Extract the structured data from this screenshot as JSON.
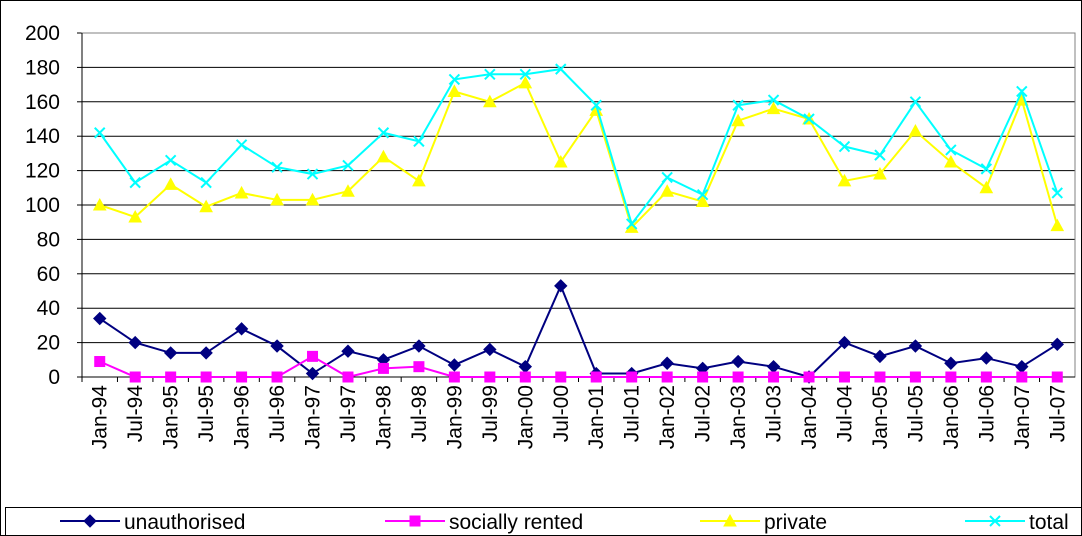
{
  "chart_data": {
    "type": "line",
    "categories": [
      "Jan-94",
      "Jul-94",
      "Jan-95",
      "Jul-95",
      "Jan-96",
      "Jul-96",
      "Jan-97",
      "Jul-97",
      "Jan-98",
      "Jul-98",
      "Jan-99",
      "Jul-99",
      "Jan-00",
      "Jul-00",
      "Jan-01",
      "Jul-01",
      "Jan-02",
      "Jul-02",
      "Jan-03",
      "Jul-03",
      "Jan-04",
      "Jul-04",
      "Jan-05",
      "Jul-05",
      "Jan-06",
      "Jul-06",
      "Jan-07",
      "Jul-07"
    ],
    "series": [
      {
        "name": "unauthorised",
        "color": "#000080",
        "marker": "diamond",
        "values": [
          34,
          20,
          14,
          14,
          28,
          18,
          2,
          15,
          10,
          18,
          7,
          16,
          6,
          53,
          2,
          2,
          8,
          5,
          9,
          6,
          0,
          20,
          12,
          18,
          8,
          11,
          6,
          19
        ]
      },
      {
        "name": "socially rented",
        "color": "#ff00ff",
        "marker": "square",
        "values": [
          9,
          0,
          0,
          0,
          0,
          0,
          12,
          0,
          5,
          6,
          0,
          0,
          0,
          0,
          0,
          0,
          0,
          0,
          0,
          0,
          0,
          0,
          0,
          0,
          0,
          0,
          0,
          0
        ]
      },
      {
        "name": "private",
        "color": "#ffff00",
        "marker": "triangle",
        "values": [
          100,
          93,
          112,
          99,
          107,
          103,
          103,
          108,
          128,
          114,
          166,
          160,
          171,
          125,
          155,
          87,
          108,
          102,
          149,
          156,
          150,
          114,
          118,
          143,
          125,
          110,
          161,
          88
        ]
      },
      {
        "name": "total",
        "color": "#00ffff",
        "marker": "x",
        "values": [
          142,
          113,
          126,
          113,
          135,
          122,
          118,
          123,
          142,
          137,
          173,
          176,
          176,
          179,
          158,
          89,
          116,
          106,
          158,
          161,
          150,
          134,
          129,
          160,
          132,
          121,
          166,
          107
        ]
      }
    ],
    "ylim": [
      0,
      200
    ],
    "yticks": [
      0,
      20,
      40,
      60,
      80,
      100,
      120,
      140,
      160,
      180,
      200
    ],
    "grid": true,
    "legend": "bottom"
  }
}
